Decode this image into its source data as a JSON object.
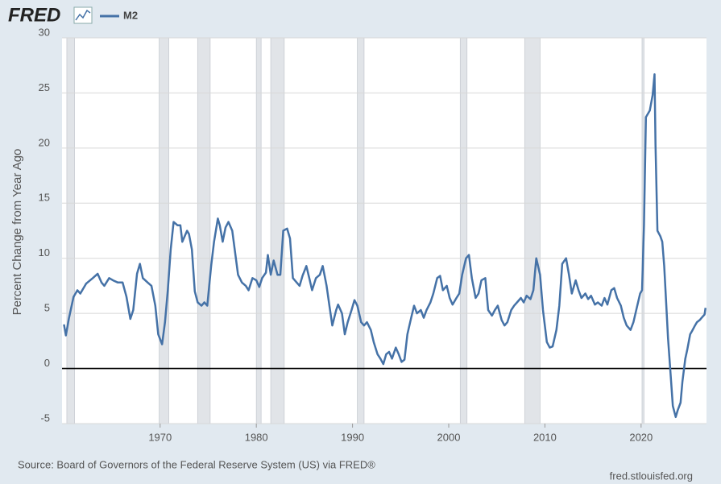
{
  "logo": "FRED",
  "source": "Source: Board of Governors of the Federal Reserve System (US) via FRED®",
  "site": "fred.stlouisfed.org",
  "chart_data": {
    "type": "line",
    "ylabel": "Percent Change from Year Ago",
    "xlim": [
      1959.8,
      2026.8
    ],
    "xticks": [
      1970,
      1980,
      1990,
      2000,
      2010,
      2020
    ],
    "ylim": [
      -5,
      30
    ],
    "yticks": [
      -5,
      0,
      5,
      10,
      15,
      20,
      25,
      30
    ],
    "grid": true,
    "recession_color": "#e1e4e8",
    "recessions": [
      [
        1960.3,
        1961.1
      ],
      [
        1969.9,
        1970.9
      ],
      [
        1973.9,
        1975.2
      ],
      [
        1980.0,
        1980.5
      ],
      [
        1981.5,
        1982.9
      ],
      [
        1990.5,
        1991.2
      ],
      [
        2001.2,
        2001.9
      ],
      [
        2007.9,
        2009.5
      ],
      [
        2020.1,
        2020.3
      ]
    ],
    "x": [
      1960.0,
      1960.2,
      1960.5,
      1961.0,
      1961.4,
      1961.7,
      1962.3,
      1963.0,
      1963.5,
      1963.9,
      1964.2,
      1964.7,
      1965.1,
      1965.6,
      1966.1,
      1966.5,
      1966.9,
      1967.2,
      1967.6,
      1967.9,
      1968.2,
      1968.7,
      1969.1,
      1969.5,
      1969.8,
      1970.2,
      1970.5,
      1970.8,
      1971.1,
      1971.4,
      1971.8,
      1972.1,
      1972.3,
      1972.8,
      1973.0,
      1973.3,
      1973.6,
      1973.9,
      1974.3,
      1974.6,
      1974.9,
      1975.3,
      1975.6,
      1976.0,
      1976.2,
      1976.5,
      1976.8,
      1977.1,
      1977.5,
      1977.8,
      1978.1,
      1978.5,
      1978.9,
      1979.2,
      1979.6,
      1980.0,
      1980.3,
      1980.6,
      1981.0,
      1981.2,
      1981.5,
      1981.8,
      1982.2,
      1982.5,
      1982.8,
      1983.2,
      1983.5,
      1983.8,
      1984.2,
      1984.5,
      1984.8,
      1985.2,
      1985.5,
      1985.8,
      1986.2,
      1986.6,
      1986.9,
      1987.3,
      1987.6,
      1987.9,
      1988.3,
      1988.5,
      1988.9,
      1989.2,
      1989.5,
      1989.9,
      1990.2,
      1990.5,
      1990.9,
      1991.2,
      1991.5,
      1991.9,
      1992.2,
      1992.6,
      1992.9,
      1993.2,
      1993.5,
      1993.8,
      1994.1,
      1994.5,
      1994.8,
      1995.1,
      1995.4,
      1995.7,
      1996.1,
      1996.4,
      1996.7,
      1997.1,
      1997.4,
      1997.7,
      1998.1,
      1998.4,
      1998.8,
      1999.1,
      1999.4,
      1999.8,
      2000.1,
      2000.4,
      2000.8,
      2001.1,
      2001.4,
      2001.8,
      2002.1,
      2002.4,
      2002.8,
      2003.1,
      2003.4,
      2003.8,
      2004.1,
      2004.5,
      2004.8,
      2005.1,
      2005.5,
      2005.8,
      2006.1,
      2006.5,
      2006.8,
      2007.1,
      2007.5,
      2007.8,
      2008.1,
      2008.5,
      2008.8,
      2009.1,
      2009.5,
      2009.8,
      2010.2,
      2010.5,
      2010.8,
      2011.2,
      2011.5,
      2011.8,
      2012.2,
      2012.5,
      2012.8,
      2013.2,
      2013.5,
      2013.8,
      2014.2,
      2014.5,
      2014.8,
      2015.2,
      2015.5,
      2015.9,
      2016.2,
      2016.5,
      2016.9,
      2017.2,
      2017.5,
      2017.9,
      2018.2,
      2018.5,
      2018.9,
      2019.2,
      2019.5,
      2019.9,
      2020.1,
      2020.3,
      2020.5,
      2020.9,
      2021.2,
      2021.4,
      2021.5,
      2021.7,
      2022.0,
      2022.2,
      2022.4,
      2022.6,
      2022.8,
      2023.1,
      2023.3,
      2023.6,
      2023.8,
      2024.1,
      2024.3,
      2024.6,
      2024.8,
      2025.1,
      2025.3,
      2025.6,
      2025.8,
      2026.1,
      2026.3,
      2026.6,
      2026.7
    ],
    "series": [
      {
        "name": "M2",
        "color": "#4572a7",
        "values": [
          4,
          3,
          4.5,
          6.5,
          7.1,
          6.8,
          7.7,
          8.2,
          8.6,
          7.8,
          7.5,
          8.2,
          8,
          7.8,
          7.8,
          6.5,
          4.5,
          5.3,
          8.6,
          9.5,
          8.2,
          7.8,
          7.5,
          5.7,
          3.1,
          2.2,
          4.2,
          7.1,
          10.8,
          13.3,
          13,
          13,
          11.5,
          12.5,
          12.2,
          10.8,
          7,
          6,
          5.7,
          6,
          5.7,
          9.3,
          11.5,
          13.6,
          13,
          11.5,
          12.8,
          13.3,
          12.5,
          10.5,
          8.5,
          7.8,
          7.5,
          7.1,
          8.2,
          8,
          7.4,
          8.2,
          8.7,
          10.3,
          8.5,
          9.8,
          8.5,
          8.5,
          12.5,
          12.7,
          11.8,
          8.2,
          7.8,
          7.5,
          8.4,
          9.3,
          8.2,
          7.1,
          8.2,
          8.5,
          9.3,
          7.5,
          5.7,
          3.9,
          5.3,
          5.8,
          5,
          3.1,
          4.2,
          5.3,
          6.2,
          5.7,
          4.2,
          3.9,
          4.2,
          3.5,
          2.4,
          1.3,
          0.9,
          0.4,
          1.3,
          1.5,
          0.9,
          1.9,
          1.3,
          0.6,
          0.8,
          3.1,
          4.6,
          5.7,
          5,
          5.3,
          4.6,
          5.3,
          6,
          6.8,
          8.2,
          8.4,
          7.1,
          7.5,
          6.4,
          5.8,
          6.4,
          6.8,
          8.5,
          10,
          10.3,
          8.2,
          6.4,
          6.8,
          8,
          8.2,
          5.3,
          4.8,
          5.3,
          5.7,
          4.4,
          3.9,
          4.2,
          5.3,
          5.7,
          6,
          6.4,
          6,
          6.6,
          6.3,
          7.1,
          10,
          8.5,
          5.3,
          2.4,
          1.9,
          2,
          3.5,
          5.7,
          9.5,
          10,
          8.5,
          6.8,
          8,
          7.1,
          6.4,
          6.8,
          6.3,
          6.6,
          5.8,
          6,
          5.7,
          6.4,
          5.8,
          7.1,
          7.3,
          6.4,
          5.7,
          4.6,
          3.9,
          3.5,
          4.2,
          5.3,
          6.8,
          7.1,
          13,
          22.8,
          23.4,
          24.8,
          26.7,
          20.3,
          12.5,
          12,
          11.5,
          9.3,
          6,
          2.8,
          -0.9,
          -3.4,
          -4.4,
          -3.8,
          -3.1,
          -1.2,
          0.9,
          1.7,
          3.1,
          3.4,
          3.9,
          4.2,
          4.4,
          4.6,
          4.9,
          5.5
        ]
      }
    ]
  }
}
